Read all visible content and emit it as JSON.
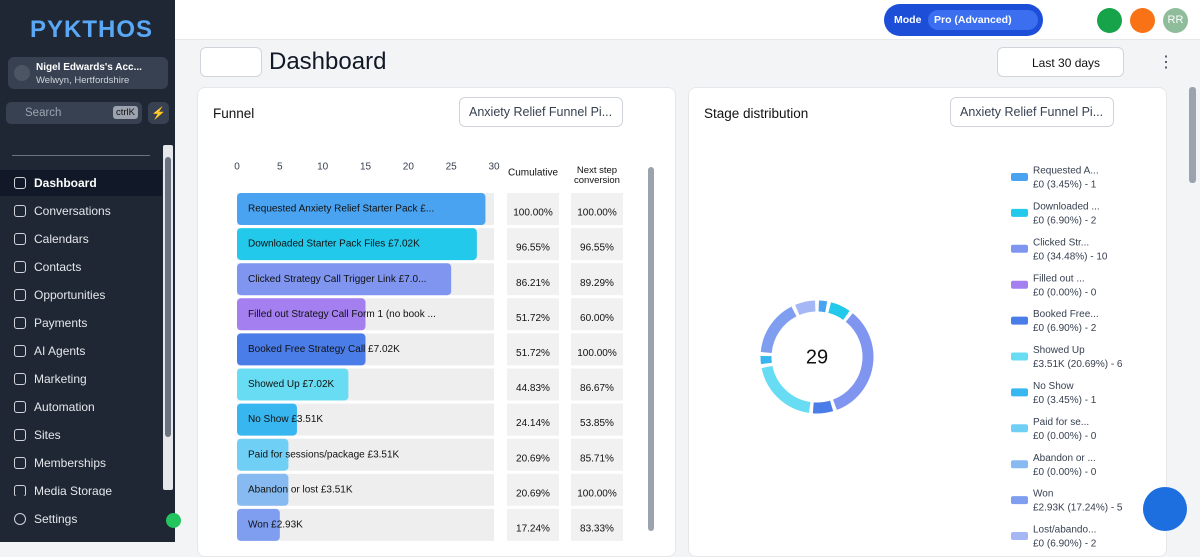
{
  "sidebar": {
    "logo": "PYKTHOS",
    "account": {
      "name": "Nigel Edwards's Acc...",
      "location": "Welwyn, Hertfordshire"
    },
    "search": {
      "placeholder": "Search",
      "shortcut": "ctrlK"
    },
    "nav": [
      "Dashboard",
      "Conversations",
      "Calendars",
      "Contacts",
      "Opportunities",
      "Payments",
      "AI Agents",
      "Marketing",
      "Automation",
      "Sites",
      "Memberships",
      "Media Storage"
    ],
    "settings": "Settings"
  },
  "topbar": {
    "mode_label": "Mode",
    "mode_value": "Pro (Advanced)",
    "avatar": "RR"
  },
  "header": {
    "title": "Dashboard",
    "date_range": "Last 30 days"
  },
  "chart_data": [
    {
      "type": "bar",
      "orientation": "horizontal",
      "title": "Funnel",
      "filter": "Anxiety Relief Funnel Pi...",
      "xlim": [
        0,
        30
      ],
      "xticks": [
        0,
        5,
        10,
        15,
        20,
        25,
        30
      ],
      "categories": [
        "Requested Anxiety Relief Starter Pack  £...",
        "Downloaded Starter Pack Files  £7.02K",
        "Clicked Strategy Call Trigger Link  £7.0...",
        "Filled out Strategy Call Form 1 (no book ...",
        "Booked Free Strategy Call  £7.02K",
        "Showed Up  £7.02K",
        "No Show  £3.51K",
        "Paid for sessions/package  £3.51K",
        "Abandon or lost  £3.51K",
        "Won  £2.93K"
      ],
      "values": [
        29,
        28,
        25,
        15,
        15,
        13,
        7,
        6,
        6,
        5
      ],
      "colors": [
        "#4aa3f0",
        "#22c9ea",
        "#7f95f0",
        "#a47ff0",
        "#4b7de8",
        "#67dcf2",
        "#38b6f0",
        "#70cff5",
        "#86baf0",
        "#7f9ef0"
      ],
      "columns": [
        "Cumulative",
        "Next step conversion"
      ],
      "cumulative": [
        "100.00%",
        "96.55%",
        "86.21%",
        "51.72%",
        "51.72%",
        "44.83%",
        "24.14%",
        "20.69%",
        "20.69%",
        "17.24%"
      ],
      "next_step": [
        "100.00%",
        "96.55%",
        "89.29%",
        "60.00%",
        "100.00%",
        "86.67%",
        "53.85%",
        "85.71%",
        "100.00%",
        "83.33%"
      ]
    },
    {
      "type": "pie",
      "donut": true,
      "title": "Stage distribution",
      "filter": "Anxiety Relief Funnel Pi...",
      "total": 29,
      "categories": [
        "Requested A...",
        "Downloaded ...",
        "Clicked Str...",
        "Filled out ...",
        "Booked Free...",
        "Showed Up",
        "No Show",
        "Paid for se...",
        "Abandon or ...",
        "Won",
        "Lost/abando..."
      ],
      "values": [
        1,
        2,
        10,
        0,
        2,
        6,
        1,
        0,
        0,
        5,
        2
      ],
      "value_labels": [
        "£0 (3.45%) - 1",
        "£0 (6.90%) - 2",
        "£0 (34.48%) - 10",
        "£0 (0.00%) - 0",
        "£0 (6.90%) - 2",
        "£3.51K (20.69%) - 6",
        "£0 (3.45%) - 1",
        "£0 (0.00%) - 0",
        "£0 (0.00%) - 0",
        "£2.93K (17.24%) - 5",
        "£0 (6.90%) - 2"
      ],
      "colors": [
        "#4aa3f0",
        "#22c9ea",
        "#7f95f0",
        "#a47ff0",
        "#4b7de8",
        "#67dcf2",
        "#38b6f0",
        "#70cff5",
        "#86baf0",
        "#7f9ef0",
        "#a5b8f5"
      ]
    }
  ]
}
